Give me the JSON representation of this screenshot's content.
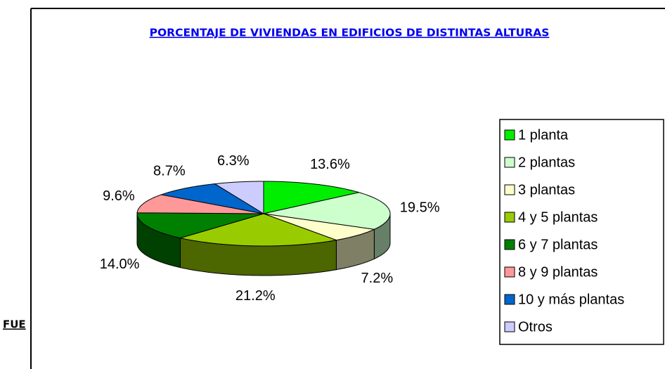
{
  "chart_data": {
    "type": "pie3d",
    "title": "PORCENTAJE DE VIVIENDAS EN EDIFICIOS DE DISTINTAS ALTURAS",
    "categories": [
      "1 planta",
      "2 plantas",
      "3 plantas",
      "4 y 5 plantas",
      "6 y 7 plantas",
      "8 y 9 plantas",
      "10 y más plantas",
      "Otros"
    ],
    "values": [
      13.6,
      19.5,
      7.2,
      21.2,
      14.0,
      9.6,
      8.7,
      6.3
    ],
    "value_labels": [
      "13.6%",
      "19.5%",
      "7.2%",
      "21.2%",
      "14.0%",
      "9.6%",
      "8.7%",
      "6.3%"
    ],
    "colors": [
      "#00ee00",
      "#ccffcc",
      "#ffffcc",
      "#99cc00",
      "#008000",
      "#ff9999",
      "#0066cc",
      "#ccccff"
    ],
    "legend": "right"
  },
  "footer": {
    "source_fragment": "FUE"
  }
}
